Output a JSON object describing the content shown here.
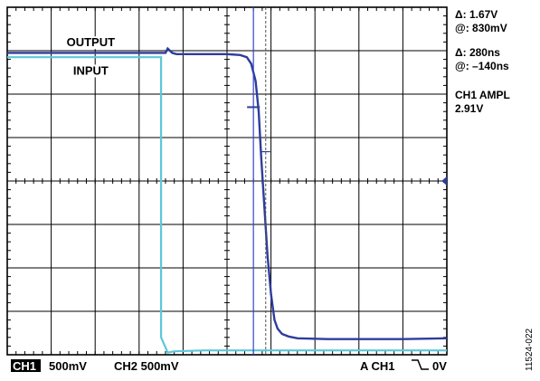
{
  "readouts": {
    "delta_v": "Δ: 1.67V",
    "at_v": "@: 830mV",
    "delta_t": "Δ: 280ns",
    "at_t": "@: –140ns",
    "ch1_ampl_label": "CH1 AMPL",
    "ch1_ampl_value": "2.91V"
  },
  "status_bar": {
    "ch1_badge": "CH1",
    "ch1_scale": "500mV",
    "ch2_scale": "CH2 500mV",
    "trigger": "A  CH1",
    "trigger_level": "0V"
  },
  "figure_id": "11524-022",
  "colors": {
    "output_trace": "#2e3d9c",
    "input_trace": "#5cc8d8",
    "cursor_solid": "#3344cc",
    "cursor_dashed": "#555555",
    "grid": "#000000"
  },
  "chart_data": {
    "type": "line",
    "title": "",
    "xlabel": "",
    "ylabel": "",
    "divisions": {
      "x": 10,
      "y": 8
    },
    "xlim": [
      0,
      10
    ],
    "ylim": [
      -4,
      4
    ],
    "series": [
      {
        "name": "OUTPUT",
        "x": [
          0,
          3.6,
          3.65,
          3.75,
          3.85,
          4.0,
          4.5,
          5.0,
          5.3,
          5.45,
          5.55,
          5.65,
          5.72,
          5.78,
          5.85,
          5.92,
          6.0,
          6.08,
          6.15,
          6.25,
          6.4,
          6.6,
          6.9,
          7.3,
          8.0,
          9.0,
          10
        ],
        "y": [
          2.95,
          2.95,
          3.05,
          2.95,
          2.92,
          2.92,
          2.92,
          2.92,
          2.9,
          2.85,
          2.7,
          2.3,
          1.6,
          0.5,
          -0.6,
          -1.7,
          -2.6,
          -3.2,
          -3.4,
          -3.52,
          -3.58,
          -3.62,
          -3.63,
          -3.64,
          -3.64,
          -3.64,
          -3.62
        ]
      },
      {
        "name": "INPUT",
        "x": [
          0,
          3.5,
          3.5,
          3.65,
          3.8,
          4.5,
          6.0,
          8.0,
          10
        ],
        "y": [
          2.85,
          2.85,
          -3.6,
          -3.95,
          -3.92,
          -3.9,
          -3.9,
          -3.9,
          -3.9
        ]
      }
    ],
    "annotations": [
      {
        "text": "OUTPUT",
        "x": 1.9,
        "y": 3.1
      },
      {
        "text": "INPUT",
        "x": 1.9,
        "y": 2.45
      }
    ],
    "cursors": {
      "t1": 5.6,
      "t2": 5.88,
      "v1": 1.7,
      "v2": 0.05
    }
  }
}
